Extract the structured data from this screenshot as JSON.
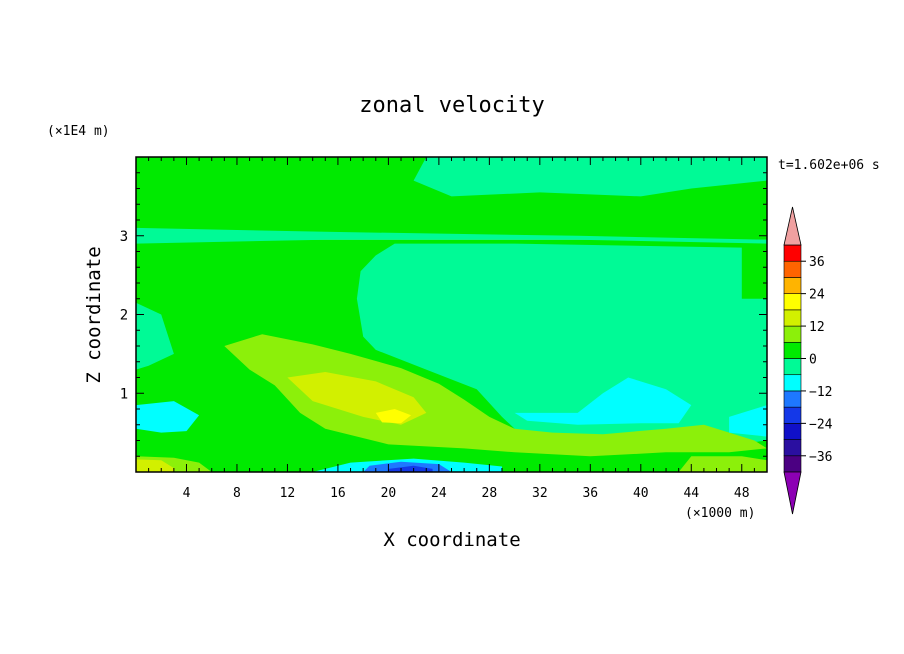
{
  "chart_data": {
    "type": "heatmap",
    "title": "zonal velocity",
    "xlabel": "X coordinate",
    "ylabel": "Z coordinate",
    "x_unit": "(×1000 m)",
    "y_unit": "(×1E4 m)",
    "time_label": "t=1.602e+06 s",
    "xlim": [
      0,
      50
    ],
    "ylim": [
      0,
      4
    ],
    "x_ticks": [
      "4",
      "8",
      "12",
      "16",
      "20",
      "24",
      "28",
      "32",
      "36",
      "40",
      "44",
      "48"
    ],
    "y_ticks": [
      "1",
      "2",
      "3"
    ],
    "colorbar": {
      "ticks": [
        "36",
        "24",
        "12",
        "0",
        "-12",
        "-24",
        "-36"
      ],
      "tick_values": [
        36,
        24,
        12,
        0,
        -12,
        -24,
        -36
      ],
      "range": [
        -42,
        42
      ],
      "step": 6,
      "levels": [
        {
          "min": -42,
          "max": -36,
          "color": "#4b0082"
        },
        {
          "min": -36,
          "max": -30,
          "color": "#2a0fa0"
        },
        {
          "min": -30,
          "max": -24,
          "color": "#1010c8"
        },
        {
          "min": -24,
          "max": -18,
          "color": "#1438e8"
        },
        {
          "min": -18,
          "max": -12,
          "color": "#1e78ff"
        },
        {
          "min": -12,
          "max": -6,
          "color": "#00ffff"
        },
        {
          "min": -6,
          "max": 0,
          "color": "#00fa96"
        },
        {
          "min": 0,
          "max": 6,
          "color": "#00ea00"
        },
        {
          "min": 6,
          "max": 12,
          "color": "#8cf00a"
        },
        {
          "min": 12,
          "max": 18,
          "color": "#d2f000"
        },
        {
          "min": 18,
          "max": 24,
          "color": "#ffff00"
        },
        {
          "min": 24,
          "max": 30,
          "color": "#ffb400"
        },
        {
          "min": 30,
          "max": 36,
          "color": "#ff6400"
        },
        {
          "min": 36,
          "max": 42,
          "color": "#ff0000"
        }
      ],
      "over_color": "#f0a0a0",
      "under_color": "#8c00b4"
    },
    "regions": [
      {
        "level": 0,
        "value": 3,
        "points": [
          [
            0,
            4
          ],
          [
            50,
            4
          ],
          [
            50,
            2.95
          ],
          [
            0,
            2.95
          ]
        ]
      },
      {
        "level": 0,
        "value": 3,
        "points": [
          [
            0,
            2.95
          ],
          [
            50,
            2.95
          ],
          [
            50,
            0
          ],
          [
            0,
            0
          ]
        ]
      },
      {
        "level": -6,
        "value": -3,
        "points": [
          [
            23,
            4
          ],
          [
            50,
            4
          ],
          [
            50,
            3.7
          ],
          [
            44,
            3.6
          ],
          [
            40,
            3.5
          ],
          [
            32,
            3.55
          ],
          [
            25,
            3.5
          ],
          [
            22,
            3.7
          ]
        ]
      },
      {
        "level": -6,
        "value": -3,
        "points": [
          [
            0,
            3.1
          ],
          [
            15,
            3.05
          ],
          [
            35,
            3.0
          ],
          [
            50,
            2.95
          ],
          [
            50,
            2.9
          ],
          [
            35,
            2.95
          ],
          [
            15,
            2.95
          ],
          [
            0,
            2.9
          ]
        ]
      },
      {
        "level": -6,
        "value": -3,
        "points": [
          [
            30,
            2.9
          ],
          [
            48,
            2.85
          ],
          [
            48,
            2.2
          ],
          [
            50,
            2.2
          ],
          [
            50,
            0.4
          ],
          [
            45,
            0.3
          ],
          [
            40,
            0.35
          ],
          [
            35,
            0.4
          ],
          [
            31,
            0.4
          ],
          [
            29,
            0.7
          ],
          [
            27,
            1.05
          ],
          [
            23,
            1.3
          ],
          [
            19,
            1.55
          ],
          [
            18,
            1.72
          ],
          [
            17.5,
            2.2
          ],
          [
            17.8,
            2.55
          ],
          [
            19,
            2.75
          ],
          [
            20.5,
            2.9
          ]
        ]
      },
      {
        "level": -6,
        "value": -3,
        "points": [
          [
            0,
            2.15
          ],
          [
            2,
            2.0
          ],
          [
            3,
            1.5
          ],
          [
            1,
            1.35
          ],
          [
            0,
            1.3
          ]
        ]
      },
      {
        "level": 6,
        "value": 9,
        "points": [
          [
            7,
            1.6
          ],
          [
            10,
            1.75
          ],
          [
            14,
            1.62
          ],
          [
            17,
            1.5
          ],
          [
            21,
            1.32
          ],
          [
            24,
            1.12
          ],
          [
            26,
            0.92
          ],
          [
            28,
            0.7
          ],
          [
            30,
            0.55
          ],
          [
            33,
            0.5
          ],
          [
            37,
            0.48
          ],
          [
            42,
            0.55
          ],
          [
            45,
            0.6
          ],
          [
            49,
            0.4
          ],
          [
            50,
            0.3
          ],
          [
            47,
            0.25
          ],
          [
            42,
            0.25
          ],
          [
            36,
            0.2
          ],
          [
            30,
            0.25
          ],
          [
            26,
            0.3
          ],
          [
            20,
            0.35
          ],
          [
            15,
            0.55
          ],
          [
            13,
            0.75
          ],
          [
            11,
            1.1
          ],
          [
            9,
            1.3
          ]
        ]
      },
      {
        "level": 6,
        "value": 9,
        "points": [
          [
            0,
            0.2
          ],
          [
            3,
            0.18
          ],
          [
            5,
            0.12
          ],
          [
            6,
            0
          ],
          [
            0,
            0
          ]
        ]
      },
      {
        "level": 6,
        "value": 9,
        "points": [
          [
            44,
            0.2
          ],
          [
            48,
            0.2
          ],
          [
            50,
            0.15
          ],
          [
            50,
            0
          ],
          [
            43,
            0
          ]
        ]
      },
      {
        "level": 12,
        "value": 15,
        "points": [
          [
            12,
            1.2
          ],
          [
            15,
            1.27
          ],
          [
            19,
            1.15
          ],
          [
            22,
            0.95
          ],
          [
            23,
            0.75
          ],
          [
            21,
            0.6
          ],
          [
            18,
            0.7
          ],
          [
            14,
            0.9
          ]
        ]
      },
      {
        "level": 12,
        "value": 15,
        "points": [
          [
            0,
            0.16
          ],
          [
            2,
            0.15
          ],
          [
            3,
            0.05
          ],
          [
            3,
            0
          ],
          [
            0,
            0
          ]
        ]
      },
      {
        "level": 18,
        "value": 21,
        "points": [
          [
            19,
            0.75
          ],
          [
            20.5,
            0.8
          ],
          [
            21.8,
            0.72
          ],
          [
            21,
            0.62
          ],
          [
            19.5,
            0.63
          ]
        ]
      },
      {
        "level": -12,
        "value": -9,
        "points": [
          [
            0,
            0.85
          ],
          [
            3,
            0.9
          ],
          [
            5,
            0.72
          ],
          [
            4,
            0.52
          ],
          [
            2,
            0.5
          ],
          [
            0,
            0.55
          ]
        ]
      },
      {
        "level": -12,
        "value": -9,
        "points": [
          [
            30,
            0.75
          ],
          [
            35,
            0.75
          ],
          [
            37,
            1.0
          ],
          [
            39,
            1.2
          ],
          [
            42,
            1.05
          ],
          [
            44,
            0.85
          ],
          [
            43,
            0.62
          ],
          [
            40,
            0.62
          ],
          [
            35,
            0.6
          ],
          [
            31,
            0.65
          ]
        ]
      },
      {
        "level": -12,
        "value": -9,
        "points": [
          [
            47,
            0.7
          ],
          [
            50,
            0.85
          ],
          [
            50,
            0.45
          ],
          [
            47,
            0.5
          ]
        ]
      },
      {
        "level": -12,
        "value": -9,
        "points": [
          [
            17,
            0.12
          ],
          [
            22,
            0.17
          ],
          [
            26,
            0.12
          ],
          [
            29,
            0.07
          ],
          [
            29,
            0
          ],
          [
            14,
            0
          ]
        ]
      },
      {
        "level": -18,
        "value": -15,
        "points": [
          [
            18.5,
            0.08
          ],
          [
            21,
            0.13
          ],
          [
            24,
            0.1
          ],
          [
            25,
            0
          ],
          [
            18,
            0
          ]
        ]
      },
      {
        "level": -24,
        "value": -21,
        "points": [
          [
            20,
            0.04
          ],
          [
            22,
            0.08
          ],
          [
            23.5,
            0.04
          ],
          [
            23.5,
            0
          ],
          [
            20,
            0
          ]
        ]
      }
    ]
  }
}
